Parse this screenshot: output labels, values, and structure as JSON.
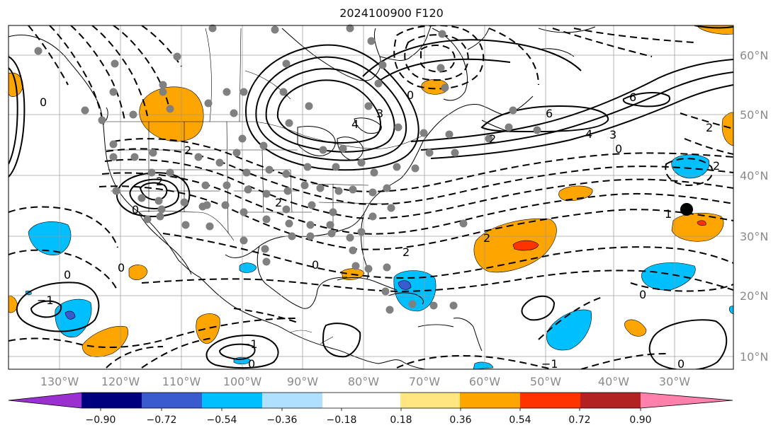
{
  "title": "2024100900 F120",
  "longitude_labels": [
    "130°W",
    "120°W",
    "110°W",
    "100°W",
    "90°W",
    "80°W",
    "70°W",
    "60°W",
    "50°W",
    "40°W",
    "30°W"
  ],
  "latitude_labels": [
    "60°N",
    "50°N",
    "40°N",
    "30°N",
    "20°N",
    "10°N"
  ],
  "colorbar": {
    "colors": [
      "#9b30d0",
      "#00007f",
      "#3a5bd0",
      "#00bfff",
      "#b0e0ff",
      "#ffffff",
      "#ffe680",
      "#ffa500",
      "#ff3300",
      "#b22222",
      "#ff80aa"
    ],
    "tick_labels": [
      "−0.90",
      "−0.72",
      "−0.54",
      "−0.36",
      "−0.18",
      "0.18",
      "0.36",
      "0.54",
      "0.72",
      "0.90"
    ]
  },
  "contour_labels": [
    "0",
    "2",
    "3",
    "4",
    "6",
    "−1",
    "−2",
    "1"
  ],
  "fill_colors": {
    "positive": "#ffa500",
    "strong_positive": "#ff3300",
    "negative": "#00bfff",
    "strong_negative": "#3a5bd0"
  },
  "marker_color": "#808080"
}
